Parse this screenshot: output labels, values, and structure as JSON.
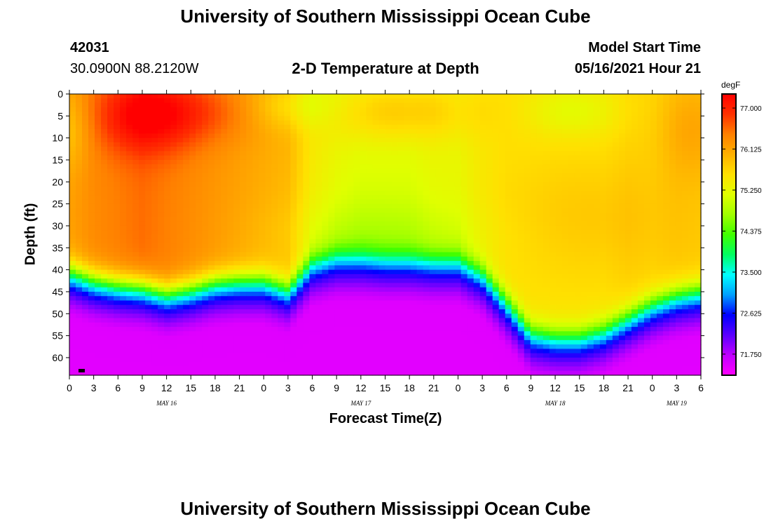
{
  "header": {
    "title_top": "University of Southern Mississippi Ocean Cube",
    "title_bottom": "University of Southern Mississippi Ocean Cube",
    "station_id": "42031",
    "station_coords": "30.0900N  88.2120W",
    "model_label": "Model Start Time",
    "model_time": "05/16/2021 Hour 21"
  },
  "chart_data": {
    "type": "heatmap",
    "title": "2-D Temperature at Depth",
    "xlabel": "Forecast Time(Z)",
    "ylabel": "Depth (ft)",
    "ylim": [
      0,
      64
    ],
    "y_inverted": true,
    "x_range_hours": [
      0,
      78
    ],
    "x_tick_labels": [
      "0",
      "3",
      "6",
      "9",
      "12",
      "15",
      "18",
      "21",
      "0",
      "3",
      "6",
      "9",
      "12",
      "15",
      "18",
      "21",
      "0",
      "3",
      "6",
      "9",
      "12",
      "15",
      "18",
      "21",
      "0",
      "3",
      "6"
    ],
    "day_labels": [
      {
        "label": "MAY 16",
        "hour": 12
      },
      {
        "label": "MAY 17",
        "hour": 36
      },
      {
        "label": "MAY 18",
        "hour": 60
      },
      {
        "label": "MAY 19",
        "hour": 75
      }
    ],
    "y_tick_labels": [
      "0",
      "5",
      "10",
      "15",
      "20",
      "25",
      "30",
      "35",
      "40",
      "45",
      "50",
      "55",
      "60"
    ],
    "y_tick_values": [
      0,
      5,
      10,
      15,
      20,
      25,
      30,
      35,
      40,
      45,
      50,
      55,
      60
    ],
    "colorbar": {
      "unit": "degF",
      "min": 71.3,
      "max": 77.3,
      "ticks": [
        "77.000",
        "76.125",
        "75.250",
        "74.375",
        "73.500",
        "72.625",
        "71.750"
      ],
      "tick_values": [
        77.0,
        76.125,
        75.25,
        74.375,
        73.5,
        72.625,
        71.75
      ],
      "colors": [
        "#ff00ff",
        "#c000ff",
        "#5a00ff",
        "#0000ff",
        "#00a0ff",
        "#00ffff",
        "#00ff60",
        "#40ff00",
        "#a0ff00",
        "#e0ff00",
        "#ffe000",
        "#ffb000",
        "#ff8000",
        "#ff3000",
        "#ff0000"
      ]
    },
    "thermocline_depth_ft": {
      "hours": [
        0,
        3,
        6,
        9,
        12,
        15,
        18,
        21,
        24,
        27,
        30,
        33,
        36,
        39,
        42,
        45,
        48,
        51,
        54,
        57,
        60,
        63,
        66,
        69,
        72,
        75,
        78
      ],
      "values": [
        40.5,
        42.5,
        43.5,
        44,
        45.5,
        44.5,
        43,
        42.5,
        42.5,
        44.5,
        38.5,
        37,
        37,
        37.5,
        37.5,
        38,
        38,
        41,
        47.5,
        54.5,
        55.5,
        55.5,
        54,
        51,
        48,
        46,
        45
      ]
    },
    "mixed_layer_temp_degF": {
      "hours": [
        0,
        3,
        6,
        9,
        12,
        15,
        18,
        21,
        24,
        27,
        30,
        33,
        36,
        39,
        42,
        45,
        48,
        51,
        54,
        57,
        60,
        63,
        66,
        69,
        72,
        75,
        78
      ],
      "values": [
        76.2,
        76.4,
        76.5,
        76.6,
        76.5,
        76.4,
        76.3,
        76.2,
        76.1,
        76.0,
        75.5,
        75.3,
        75.2,
        75.2,
        75.2,
        75.3,
        75.3,
        75.5,
        75.6,
        75.6,
        75.6,
        75.6,
        75.6,
        75.7,
        75.7,
        75.8,
        75.8
      ]
    },
    "bottom_temp_degF": 71.5
  }
}
